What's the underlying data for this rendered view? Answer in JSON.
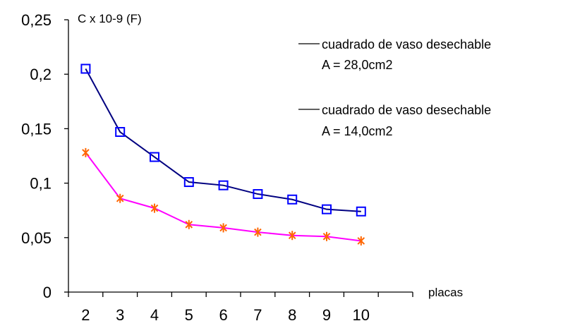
{
  "chart_data": {
    "type": "line",
    "ylabel": "C x 10-9 (F)",
    "xlabel": "placas",
    "categories": [
      "2",
      "3",
      "4",
      "5",
      "6",
      "7",
      "8",
      "9",
      "10"
    ],
    "y_tick_labels": [
      "0",
      "0,05",
      "0,1",
      "0,15",
      "0,2",
      "0,25"
    ],
    "y_ticks": [
      0,
      0.05,
      0.1,
      0.15,
      0.2,
      0.25
    ],
    "ylim": [
      0,
      0.25
    ],
    "grid": false,
    "legend_placement": "top-right",
    "series": [
      {
        "name": "cuadrado de vaso desechable",
        "legend_sub": "A = 28,0cm2",
        "color": "#000080",
        "marker": "square",
        "marker_color": "#0000ff",
        "values": [
          0.205,
          0.147,
          0.124,
          0.101,
          0.098,
          0.09,
          0.085,
          0.076,
          0.074
        ]
      },
      {
        "name": "cuadrado de vaso desechable",
        "legend_sub": "A = 14,0cm2",
        "color": "#ff00ff",
        "marker": "asterisk",
        "marker_color": "#ff6600",
        "values": [
          0.128,
          0.086,
          0.077,
          0.062,
          0.059,
          0.055,
          0.052,
          0.051,
          0.047
        ]
      }
    ]
  }
}
